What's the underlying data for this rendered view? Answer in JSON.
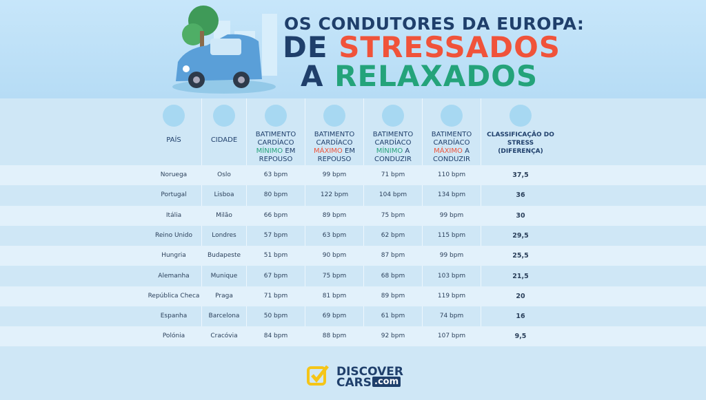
{
  "header": {
    "line1": "OS CONDUTORES DA EUROPA:",
    "line2a": "DE",
    "line2b": "STRESSADOS",
    "line3a": "A",
    "line3b": "RELAXADOS"
  },
  "table": {
    "columns": [
      {
        "pre": "PAÍS",
        "hl": "",
        "post": ""
      },
      {
        "pre": "CIDADE",
        "hl": "",
        "post": ""
      },
      {
        "pre": "BATIMENTO CARDÍACO",
        "hl": "MÍNIMO",
        "post": "EM REPOUSO"
      },
      {
        "pre": "BATIMENTO CARDÍACO",
        "hl": "MÁXIMO",
        "post": "EM REPOUSO"
      },
      {
        "pre": "BATIMENTO CARDÍACO",
        "hl": "MÍNIMO",
        "post": "A CONDUZIR"
      },
      {
        "pre": "BATIMENTO CARDÍACO",
        "hl": "MÁXIMO",
        "post": "A CONDUZIR"
      },
      {
        "pre": "CLASSIFICAÇÃO DO STRESS (DIFERENÇA)",
        "hl": "",
        "post": ""
      }
    ],
    "rows": [
      [
        "Noruega",
        "Oslo",
        "63 bpm",
        "99 bpm",
        "71 bpm",
        "110 bpm",
        "37,5"
      ],
      [
        "Portugal",
        "Lisboa",
        "80 bpm",
        "122 bpm",
        "104 bpm",
        "134 bpm",
        "36"
      ],
      [
        "Itália",
        "Milão",
        "66 bpm",
        "89 bpm",
        "75 bpm",
        "99 bpm",
        "30"
      ],
      [
        "Reino Unido",
        "Londres",
        "57 bpm",
        "63 bpm",
        "62 bpm",
        "115 bpm",
        "29,5"
      ],
      [
        "Hungria",
        "Budapeste",
        "51 bpm",
        "90 bpm",
        "87 bpm",
        "99 bpm",
        "25,5"
      ],
      [
        "Alemanha",
        "Munique",
        "67 bpm",
        "75 bpm",
        "68 bpm",
        "103 bpm",
        "21,5"
      ],
      [
        "República Checa",
        "Praga",
        "71 bpm",
        "81 bpm",
        "89 bpm",
        "119 bpm",
        "20"
      ],
      [
        "Espanha",
        "Barcelona",
        "50 bpm",
        "69 bpm",
        "61 bpm",
        "74 bpm",
        "16"
      ],
      [
        "Polónia",
        "Cracóvia",
        "84 bpm",
        "88 bpm",
        "92 bpm",
        "107 bpm",
        "9,5"
      ]
    ]
  },
  "logo": {
    "line1": "DISCOVER",
    "line2": "CARS",
    "suffix": ".com"
  }
}
